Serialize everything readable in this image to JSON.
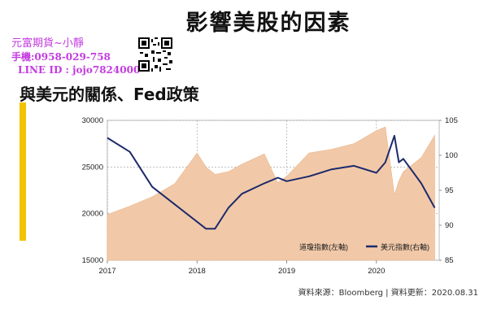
{
  "slide": {
    "title": "影響美股的因素",
    "subtitle": "與美元的關係、Fed政策",
    "contact": {
      "name": "元富期貨~小靜",
      "phone": "手機:0958-029-758",
      "line": "LINE ID : jojo7824000"
    },
    "source": "資料來源：Bloomberg | 資料更新：2020.08.31"
  },
  "colors": {
    "area": "#f2c9a8",
    "line": "#1d2a6b",
    "accent_bar": "#f2c300"
  },
  "chart_data": {
    "type": "area",
    "x": [
      2017.0,
      2017.25,
      2017.5,
      2017.75,
      2018.0,
      2018.1,
      2018.2,
      2018.35,
      2018.5,
      2018.75,
      2018.9,
      2019.0,
      2019.25,
      2019.5,
      2019.75,
      2020.0,
      2020.1,
      2020.2,
      2020.25,
      2020.3,
      2020.5,
      2020.65
    ],
    "x_ticks": [
      "2017",
      "2018",
      "2019",
      "2020"
    ],
    "y_left_ticks": [
      "15000",
      "20000",
      "25000",
      "30000"
    ],
    "y_right_ticks": [
      "85",
      "90",
      "95",
      "100",
      "105"
    ],
    "ylim_left": [
      15000,
      30000
    ],
    "ylim_right": [
      85,
      105
    ],
    "series": [
      {
        "name": "道瓊指數(左軸)",
        "axis": "left",
        "type": "area",
        "values": [
          19900,
          20800,
          21800,
          23200,
          26500,
          25000,
          24200,
          24500,
          25300,
          26400,
          23300,
          24000,
          26500,
          26900,
          27500,
          28900,
          29300,
          22000,
          23500,
          24500,
          26000,
          28400
        ]
      },
      {
        "name": "美元指數(右軸)",
        "axis": "right",
        "type": "line",
        "values": [
          102.5,
          100.5,
          95.5,
          93.0,
          90.5,
          89.5,
          89.5,
          92.5,
          94.5,
          96.0,
          96.8,
          96.3,
          97.0,
          98.0,
          98.5,
          97.5,
          99.0,
          102.8,
          99.0,
          99.5,
          96.0,
          92.5
        ]
      }
    ],
    "legend_position": "bottom-right",
    "grid": "dotted"
  }
}
